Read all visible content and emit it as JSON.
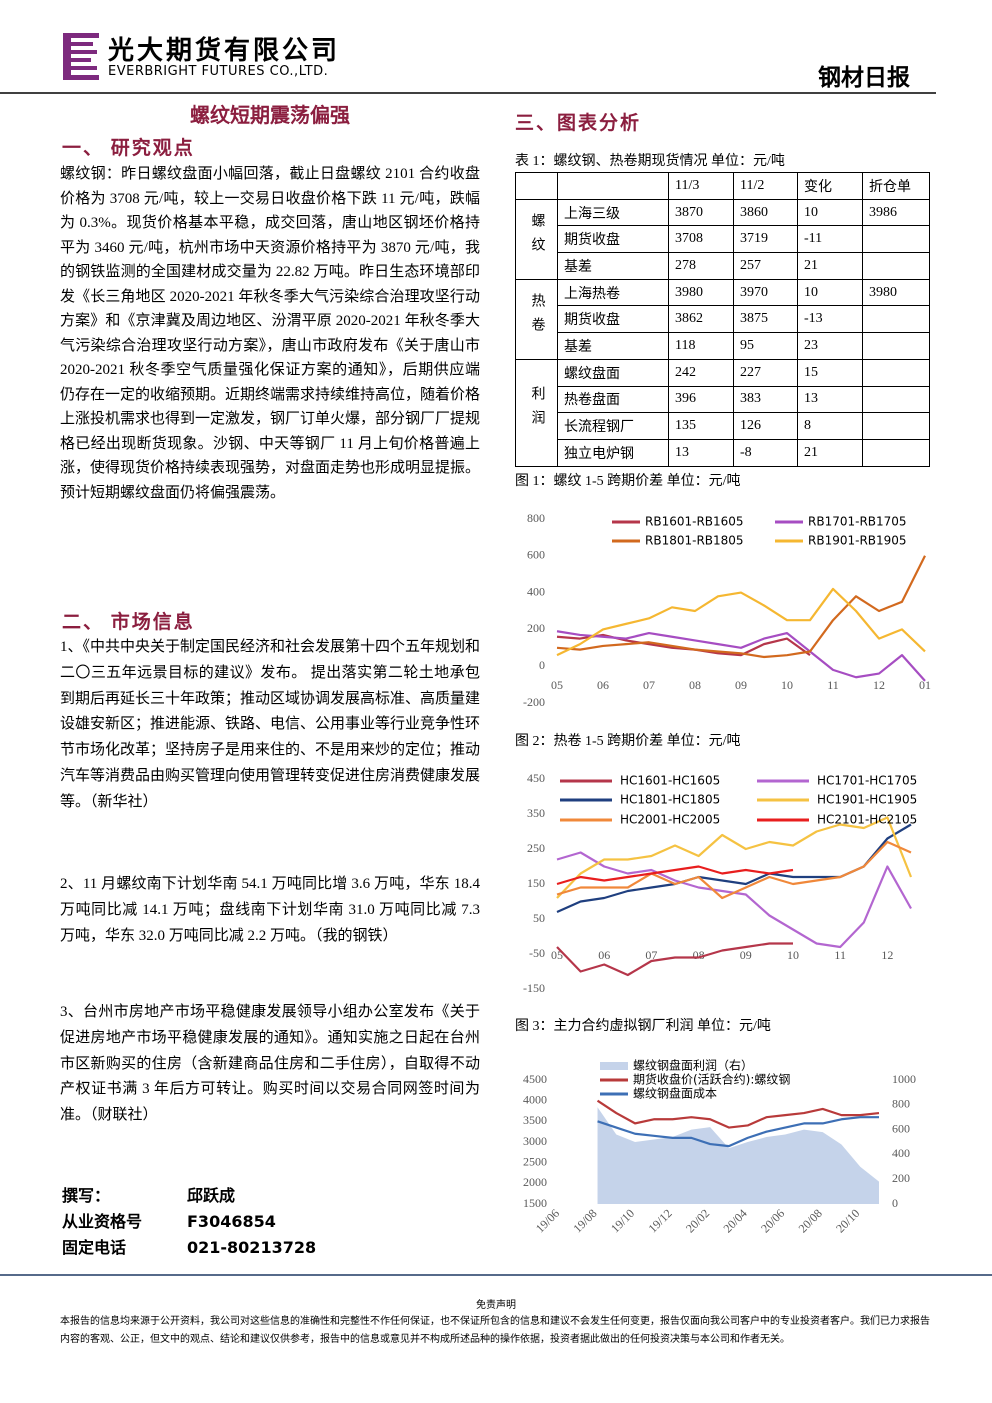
{
  "header": {
    "company_cn": "光大期货有限公司",
    "company_en": "EVERBRIGHT FUTURES CO.,LTD.",
    "report_type": "钢材日报"
  },
  "title": "螺纹短期震荡偏强",
  "section1": {
    "heading": "一、  研究观点",
    "body": "螺纹钢：昨日螺纹盘面小幅回落，截止日盘螺纹 2101 合约收盘价格为 3708 元/吨，较上一交易日收盘价格下跌 11 元/吨，跌幅为 0.3%。现货价格基本平稳，成交回落，唐山地区钢坯价格持平为 3460 元/吨，杭州市场中天资源价格持平为 3870 元/吨，我的钢铁监测的全国建材成交量为 22.82 万吨。昨日生态环境部印发《长三角地区 2020-2021 年秋冬季大气污染综合治理攻坚行动方案》和《京津冀及周边地区、汾渭平原 2020-2021 年秋冬季大气污染综合治理攻坚行动方案》，唐山市政府发布《关于唐山市 2020-2021 秋冬季空气质量强化保证方案的通知》，后期供应端仍存在一定的收缩预期。近期终端需求持续维持高位，随着价格上涨投机需求也得到一定激发，钢厂订单火爆，部分钢厂厂提规格已经出现断货现象。沙钢、中天等钢厂 11 月上旬价格普遍上涨，使得现货价格持续表现强势，对盘面走势也形成明显提振。预计短期螺纹盘面仍将偏强震荡。"
  },
  "section2": {
    "heading": "二、  市场信息",
    "items": [
      "1、《中共中央关于制定国民经济和社会发展第十四个五年规划和二〇三五年远景目标的建议》发布。 提出落实第二轮土地承包到期后再延长三十年政策；推动区域协调发展高标准、高质量建设雄安新区；推进能源、铁路、电信、公用事业等行业竞争性环节市场化改革；坚持房子是用来住的、不是用来炒的定位；推动汽车等消费品由购买管理向使用管理转变促进住房消费健康发展等。（新华社）",
      "2、11 月螺纹南下计划华南 54.1 万吨同比增 3.6 万吨，华东 18.4 万吨同比减 14.1 万吨；盘线南下计划华南 31.0 万吨同比减 7.3 万吨，华东 32.0 万吨同比减 2.2 万吨。（我的钢铁）",
      "3、台州市房地产市场平稳健康发展领导小组办公室发布《关于促进房地产市场平稳健康发展的通知》。通知实施之日起在台州市区新购买的住房（含新建商品住房和二手住房），自取得不动产权证书满 3 年后方可转让。购买时间以交易合同网签时间为准。（财联社）"
    ]
  },
  "authors": [
    [
      "撰写：",
      "邱跃成"
    ],
    [
      "从业资格号",
      "F3046854"
    ],
    [
      "固定电话",
      "021-80213728"
    ]
  ],
  "section3": {
    "heading": "三、图表分析",
    "table": {
      "caption": "表 1：螺纹钢、热卷期现货情况  单位：元/吨",
      "columns": [
        "11/3",
        "11/2",
        "变化",
        "折仓单"
      ],
      "groups": [
        {
          "label": "螺纹",
          "rows": [
            [
              "上海三级",
              3870,
              3860,
              10,
              3986
            ],
            [
              "期货收盘",
              3708,
              3719,
              -11
            ],
            [
              "基差",
              278,
              257,
              21
            ]
          ]
        },
        {
          "label": "热卷",
          "rows": [
            [
              "上海热卷",
              3980,
              3970,
              10,
              3980
            ],
            [
              "期货收盘",
              3862,
              3875,
              -13
            ],
            [
              "基差",
              118,
              95,
              23
            ]
          ]
        },
        {
          "label": "利润",
          "rows": [
            [
              "螺纹盘面",
              242,
              227,
              15
            ],
            [
              "热卷盘面",
              396,
              383,
              13
            ],
            [
              "长流程钢厂",
              135,
              126,
              8
            ],
            [
              "独立电炉钢",
              13,
              -8,
              21
            ]
          ]
        }
      ]
    }
  },
  "chart_data": [
    {
      "type": "line",
      "title": "图 1：螺纹 1-5 跨期价差  单位：元/吨",
      "categories": [
        "05",
        null,
        "06",
        null,
        "07",
        null,
        "08",
        null,
        "09",
        null,
        "10",
        null,
        "11",
        null,
        "12",
        null,
        "01"
      ],
      "ylim": [
        -200,
        800
      ],
      "yticks": [
        -200,
        0,
        200,
        400,
        600,
        800
      ],
      "series": [
        {
          "name": "RB1601-RB1605",
          "color": "#b5364a",
          "values": [
            160,
            150,
            170,
            140,
            120,
            100,
            90,
            70,
            60,
            120,
            150,
            60,
            null,
            null,
            null,
            null,
            null
          ]
        },
        {
          "name": "RB1701-RB1705",
          "color": "#a64dc2",
          "values": [
            190,
            170,
            160,
            150,
            180,
            160,
            140,
            120,
            100,
            150,
            180,
            80,
            -20,
            -60,
            -40,
            60,
            -80
          ]
        },
        {
          "name": "RB1801-RB1805",
          "color": "#d2691e",
          "values": [
            100,
            90,
            110,
            120,
            130,
            110,
            90,
            80,
            70,
            50,
            60,
            80,
            250,
            380,
            300,
            350,
            600
          ]
        },
        {
          "name": "RB1901-RB1905",
          "color": "#f5b731",
          "values": [
            60,
            120,
            200,
            230,
            260,
            320,
            300,
            380,
            400,
            330,
            250,
            250,
            420,
            300,
            150,
            200,
            80
          ]
        }
      ]
    },
    {
      "type": "line",
      "title": "图 2：热卷 1-5 跨期价差  单位：元/吨",
      "categories": [
        "05",
        null,
        "06",
        null,
        "07",
        null,
        "08",
        null,
        "09",
        null,
        "10",
        null,
        "11",
        null,
        "12",
        null
      ],
      "ylim": [
        -150,
        450
      ],
      "yticks": [
        -150,
        -50,
        50,
        150,
        250,
        350,
        450
      ],
      "series": [
        {
          "name": "HC1601-HC1605",
          "color": "#b5364a",
          "values": [
            -30,
            -100,
            -80,
            -110,
            -70,
            -60,
            -60,
            -40,
            -30,
            -20,
            -20,
            null,
            null,
            null,
            null,
            null
          ]
        },
        {
          "name": "HC1701-HC1705",
          "color": "#b366d0",
          "values": [
            220,
            240,
            200,
            180,
            190,
            160,
            140,
            130,
            120,
            60,
            20,
            -20,
            -30,
            40,
            200,
            80
          ]
        },
        {
          "name": "HC1801-HC1805",
          "color": "#1f3f7f",
          "values": [
            70,
            100,
            110,
            130,
            140,
            150,
            170,
            160,
            150,
            180,
            170,
            170,
            170,
            200,
            280,
            320
          ]
        },
        {
          "name": "HC1901-HC1905",
          "color": "#f5c242",
          "values": [
            110,
            180,
            220,
            220,
            230,
            260,
            230,
            290,
            250,
            270,
            260,
            300,
            320,
            310,
            340,
            170
          ]
        },
        {
          "name": "HC2001-HC2005",
          "color": "#f0883a",
          "values": [
            120,
            140,
            140,
            140,
            180,
            150,
            170,
            110,
            140,
            170,
            150,
            160,
            170,
            200,
            270,
            240
          ]
        },
        {
          "name": "HC2101-HC2105",
          "color": "#e81e1e",
          "values": [
            150,
            170,
            160,
            170,
            180,
            190,
            200,
            180,
            190,
            180,
            190,
            null,
            null,
            null,
            null,
            null
          ]
        }
      ]
    },
    {
      "type": "line",
      "title": "图 3：主力合约虚拟钢厂利润  单位：元/吨",
      "categories": [
        "19/06",
        null,
        "19/08",
        null,
        "19/10",
        null,
        "19/12",
        null,
        "20/02",
        null,
        "20/04",
        null,
        "20/06",
        null,
        "20/08",
        null,
        "20/10",
        null
      ],
      "ylim": [
        1500,
        4500
      ],
      "yticks": [
        1500,
        2000,
        2500,
        3000,
        3500,
        4000,
        4500
      ],
      "y2lim": [
        0,
        1000
      ],
      "y2ticks": [
        0,
        200,
        400,
        600,
        800,
        1000
      ],
      "series": [
        {
          "name": "螺纹钢盘面利润（右）",
          "type": "area",
          "axis": "y2",
          "color": "#c5d3ea",
          "values": [
            null,
            null,
            780,
            560,
            500,
            520,
            540,
            600,
            620,
            450,
            500,
            540,
            560,
            600,
            580,
            480,
            300,
            180
          ]
        },
        {
          "name": "期货收盘价(活跃合约):螺纹钢",
          "color": "#b83a3a",
          "values": [
            null,
            null,
            4000,
            3700,
            3450,
            3550,
            3550,
            3600,
            3550,
            3350,
            3400,
            3600,
            3650,
            3700,
            3800,
            3650,
            3650,
            3700
          ]
        },
        {
          "name": "螺纹钢盘面成本",
          "color": "#3d6fb5",
          "values": [
            null,
            null,
            3500,
            3350,
            3200,
            3150,
            3100,
            3100,
            2950,
            2900,
            3100,
            3250,
            3350,
            3450,
            3450,
            3550,
            3600,
            3600
          ]
        }
      ]
    }
  ],
  "footer": {
    "heading": "免责声明",
    "body": "本报告的信息均来源于公开资料，我公司对这些信息的准确性和完整性不作任何保证，也不保证所包含的信息和建议不会发生任何变更，报告仅面向我公司客户中的专业投资者客户。我们已力求报告内容的客观、公正，但文中的观点、结论和建议仅供参考，报告中的信息或意见并不构成所述品种的操作依据，投资者据此做出的任何投资决策与本公司和作者无关。"
  }
}
